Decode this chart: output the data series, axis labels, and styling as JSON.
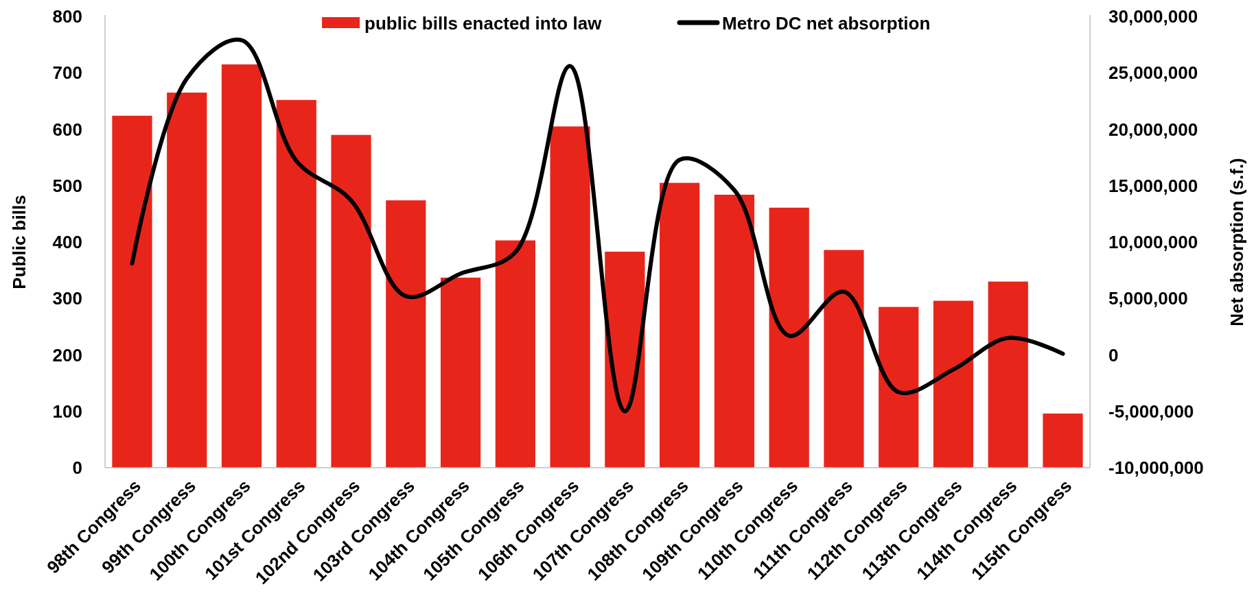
{
  "chart_data": {
    "type": "bar",
    "categories": [
      "98th Congress",
      "99th Congress",
      "100th Congress",
      "101st Congress",
      "102nd Congress",
      "103rd Congress",
      "104th Congress",
      "105th Congress",
      "106th Congress",
      "107th Congress",
      "108th Congress",
      "109th Congress",
      "110th Congress",
      "111th Congress",
      "112th Congress",
      "113th Congress",
      "114th Congress",
      "115th Congress"
    ],
    "series": [
      {
        "name": "public bills enacted into law",
        "color": "#e8251a",
        "values": [
          624,
          665,
          715,
          652,
          590,
          474,
          337,
          403,
          605,
          383,
          505,
          484,
          461,
          386,
          285,
          296,
          330,
          96
        ]
      },
      {
        "name": "Metro DC net absorption",
        "type": "line",
        "axis": "y2",
        "color": "#000000",
        "values": [
          8100000,
          24500000,
          27900000,
          17200000,
          13700000,
          5200000,
          7200000,
          9100000,
          25600000,
          -5000000,
          17300000,
          14600000,
          1700000,
          5600000,
          -3300000,
          -1300000,
          1500000,
          100000
        ]
      }
    ],
    "ylabel": "Public bills",
    "y2label": "Net absorption (s.f.)",
    "ylim": [
      0,
      800
    ],
    "yticks": [
      0,
      100,
      200,
      300,
      400,
      500,
      600,
      700,
      800
    ],
    "y2lim": [
      -10000000,
      30000000
    ],
    "y2ticks": [
      {
        "value": -10000000,
        "label": "-10,000,000"
      },
      {
        "value": -5000000,
        "label": "-5,000,000"
      },
      {
        "value": 0,
        "label": "0"
      },
      {
        "value": 5000000,
        "label": "5,000,000"
      },
      {
        "value": 10000000,
        "label": "10,000,000"
      },
      {
        "value": 15000000,
        "label": "15,000,000"
      },
      {
        "value": 20000000,
        "label": "20,000,000"
      },
      {
        "value": 25000000,
        "label": "25,000,000"
      },
      {
        "value": 30000000,
        "label": "30,000,000"
      }
    ],
    "legend": "top"
  }
}
